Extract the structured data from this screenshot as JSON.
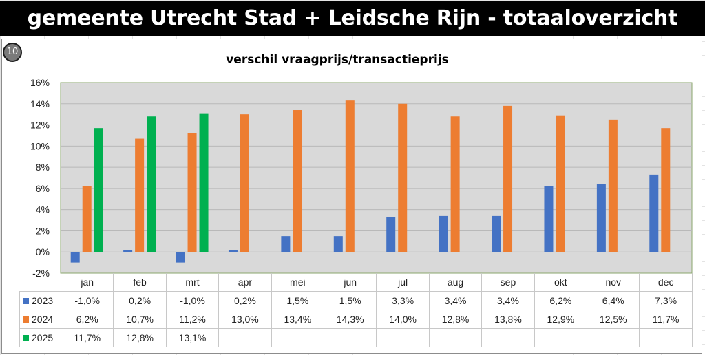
{
  "header": {
    "title": "gemeente Utrecht Stad + Leidsche Rijn - totaaloverzicht"
  },
  "badge": {
    "label": "10"
  },
  "chart_data": {
    "type": "bar",
    "title": "verschil vraagprijs/transactieprijs",
    "categories": [
      "jan",
      "feb",
      "mrt",
      "apr",
      "mei",
      "jun",
      "jul",
      "aug",
      "sep",
      "okt",
      "nov",
      "dec"
    ],
    "y_ticks": [
      "16%",
      "14%",
      "12%",
      "10%",
      "8%",
      "6%",
      "4%",
      "2%",
      "0%",
      "-2%"
    ],
    "ylim": [
      -2,
      16
    ],
    "grid": true,
    "legend": "data-table",
    "series": [
      {
        "name": "2023",
        "color": "#4472C4",
        "values": [
          -1.0,
          0.2,
          -1.0,
          0.2,
          1.5,
          1.5,
          3.3,
          3.4,
          3.4,
          6.2,
          6.4,
          7.3
        ],
        "labels": [
          "-1,0%",
          "0,2%",
          "-1,0%",
          "0,2%",
          "1,5%",
          "1,5%",
          "3,3%",
          "3,4%",
          "3,4%",
          "6,2%",
          "6,4%",
          "7,3%"
        ]
      },
      {
        "name": "2024",
        "color": "#ED7D31",
        "values": [
          6.2,
          10.7,
          11.2,
          13.0,
          13.4,
          14.3,
          14.0,
          12.8,
          13.8,
          12.9,
          12.5,
          11.7
        ],
        "labels": [
          "6,2%",
          "10,7%",
          "11,2%",
          "13,0%",
          "13,4%",
          "14,3%",
          "14,0%",
          "12,8%",
          "13,8%",
          "12,9%",
          "12,5%",
          "11,7%"
        ]
      },
      {
        "name": "2025",
        "color": "#00B050",
        "values": [
          11.7,
          12.8,
          13.1,
          null,
          null,
          null,
          null,
          null,
          null,
          null,
          null,
          null
        ],
        "labels": [
          "11,7%",
          "12,8%",
          "13,1%",
          "",
          "",
          "",
          "",
          "",
          "",
          "",
          "",
          ""
        ]
      }
    ]
  }
}
